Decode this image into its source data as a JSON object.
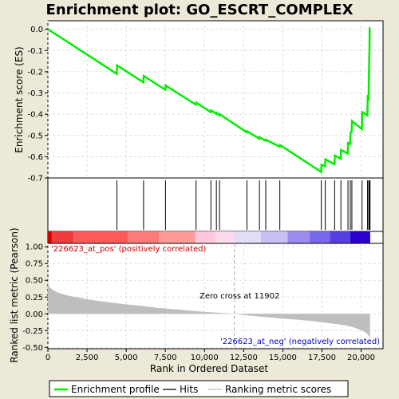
{
  "chart_data": [
    {
      "type": "line",
      "title": "Enrichment plot: GO_ESCRT_COMPLEX",
      "ylabel": "Enrichment score (ES)",
      "ylim": [
        -0.7,
        0.04
      ],
      "yticks": [
        0.0,
        -0.1,
        -0.2,
        -0.3,
        -0.4,
        -0.5,
        -0.6,
        -0.7
      ],
      "ytick_labels": [
        "0.0",
        "-0.1",
        "-0.2",
        "-0.3",
        "-0.4",
        "-0.5",
        "-0.6",
        "-0.7"
      ],
      "grid": true,
      "series": [
        {
          "name": "Enrichment profile",
          "color": "#00ee00",
          "x": [
            0,
            4400,
            4420,
            6100,
            6120,
            7500,
            7520,
            9450,
            9470,
            10400,
            10420,
            10750,
            10770,
            10950,
            10970,
            12700,
            12720,
            13500,
            13520,
            13900,
            13920,
            14800,
            14820,
            17450,
            17470,
            17700,
            17720,
            18300,
            18320,
            18700,
            18720,
            19150,
            19170,
            19300,
            19320,
            19400,
            19420,
            20050,
            20070,
            20400,
            20420,
            20480,
            20500,
            20530,
            20550,
            20580
          ],
          "y": [
            0.0,
            -0.21,
            -0.17,
            -0.25,
            -0.22,
            -0.285,
            -0.265,
            -0.355,
            -0.345,
            -0.39,
            -0.382,
            -0.398,
            -0.393,
            -0.405,
            -0.4,
            -0.485,
            -0.48,
            -0.515,
            -0.508,
            -0.525,
            -0.52,
            -0.553,
            -0.545,
            -0.672,
            -0.638,
            -0.645,
            -0.612,
            -0.635,
            -0.595,
            -0.61,
            -0.568,
            -0.585,
            -0.535,
            -0.54,
            -0.49,
            -0.48,
            -0.432,
            -0.47,
            -0.39,
            -0.405,
            -0.32,
            -0.325,
            -0.22,
            -0.11,
            0.005,
            0.005
          ]
        }
      ]
    },
    {
      "type": "scatter",
      "name": "Hits",
      "hit_positions": [
        4410,
        6110,
        7510,
        9460,
        10410,
        10760,
        10960,
        12710,
        13510,
        13910,
        14810,
        17460,
        17710,
        18310,
        18710,
        19160,
        19310,
        19410,
        20060,
        20410,
        20490,
        20540,
        20570
      ]
    },
    {
      "type": "area",
      "ylabel": "Ranked list metric (Pearson)",
      "xlabel": "Rank in Ordered Dataset",
      "xlim": [
        0,
        21400
      ],
      "ylim": [
        -0.52,
        1.05
      ],
      "xticks": [
        0,
        2500,
        5000,
        7500,
        10000,
        12500,
        15000,
        17500,
        20000
      ],
      "xtick_labels": [
        "0",
        "2,500",
        "5,000",
        "7,500",
        "10,000",
        "12,500",
        "15,000",
        "17,500",
        "20,000"
      ],
      "yticks": [
        1.0,
        0.75,
        0.5,
        0.25,
        0.0,
        -0.25,
        -0.5
      ],
      "ytick_labels": [
        "1.00",
        "0.75",
        "0.50",
        "0.25",
        "0.00",
        "-0.25",
        "-0.50"
      ],
      "x": [
        0,
        30,
        100,
        300,
        600,
        1000,
        1500,
        2000,
        3000,
        4000,
        5000,
        6000,
        7000,
        8000,
        9000,
        10000,
        11000,
        11902,
        13000,
        14000,
        15000,
        16000,
        17000,
        18000,
        19000,
        19500,
        20000,
        20300,
        20500,
        20570
      ],
      "y": [
        0.57,
        0.45,
        0.4,
        0.36,
        0.32,
        0.29,
        0.26,
        0.24,
        0.2,
        0.17,
        0.14,
        0.12,
        0.09,
        0.07,
        0.05,
        0.03,
        0.015,
        0.0,
        -0.03,
        -0.05,
        -0.07,
        -0.09,
        -0.11,
        -0.14,
        -0.17,
        -0.2,
        -0.24,
        -0.28,
        -0.33,
        -0.4
      ],
      "color": "#bebebe",
      "zero_cross": 11902,
      "annotations": {
        "pos_label": "'226623_at_pos' (positively correlated)",
        "neg_label": "'226623_at_neg' (negatively correlated)",
        "zero_cross_label": "Zero cross at 11902"
      }
    }
  ],
  "heat_bar": {
    "segments": [
      {
        "from": 0,
        "to": 250,
        "color": "#d50000"
      },
      {
        "from": 250,
        "to": 1650,
        "color": "#f03c3c"
      },
      {
        "from": 1650,
        "to": 5100,
        "color": "#fb5a5a"
      },
      {
        "from": 5100,
        "to": 7100,
        "color": "#fd7a7a"
      },
      {
        "from": 7100,
        "to": 9400,
        "color": "#fd9a9a"
      },
      {
        "from": 9400,
        "to": 10700,
        "color": "#fdc8de"
      },
      {
        "from": 10700,
        "to": 11900,
        "color": "#fcdcec"
      },
      {
        "from": 11900,
        "to": 13600,
        "color": "#e2dcf4"
      },
      {
        "from": 13600,
        "to": 15300,
        "color": "#cac0f4"
      },
      {
        "from": 15300,
        "to": 16700,
        "color": "#9c8cf0"
      },
      {
        "from": 16700,
        "to": 18000,
        "color": "#7868ea"
      },
      {
        "from": 18000,
        "to": 19300,
        "color": "#5440e0"
      },
      {
        "from": 19300,
        "to": 20580,
        "color": "#2a00d0"
      }
    ]
  },
  "legend": {
    "items": [
      {
        "label": "Enrichment profile",
        "color": "#00ee00"
      },
      {
        "label": "Hits",
        "color": "#000000"
      },
      {
        "label": "Ranking metric scores",
        "color": "#bebebe"
      }
    ]
  }
}
